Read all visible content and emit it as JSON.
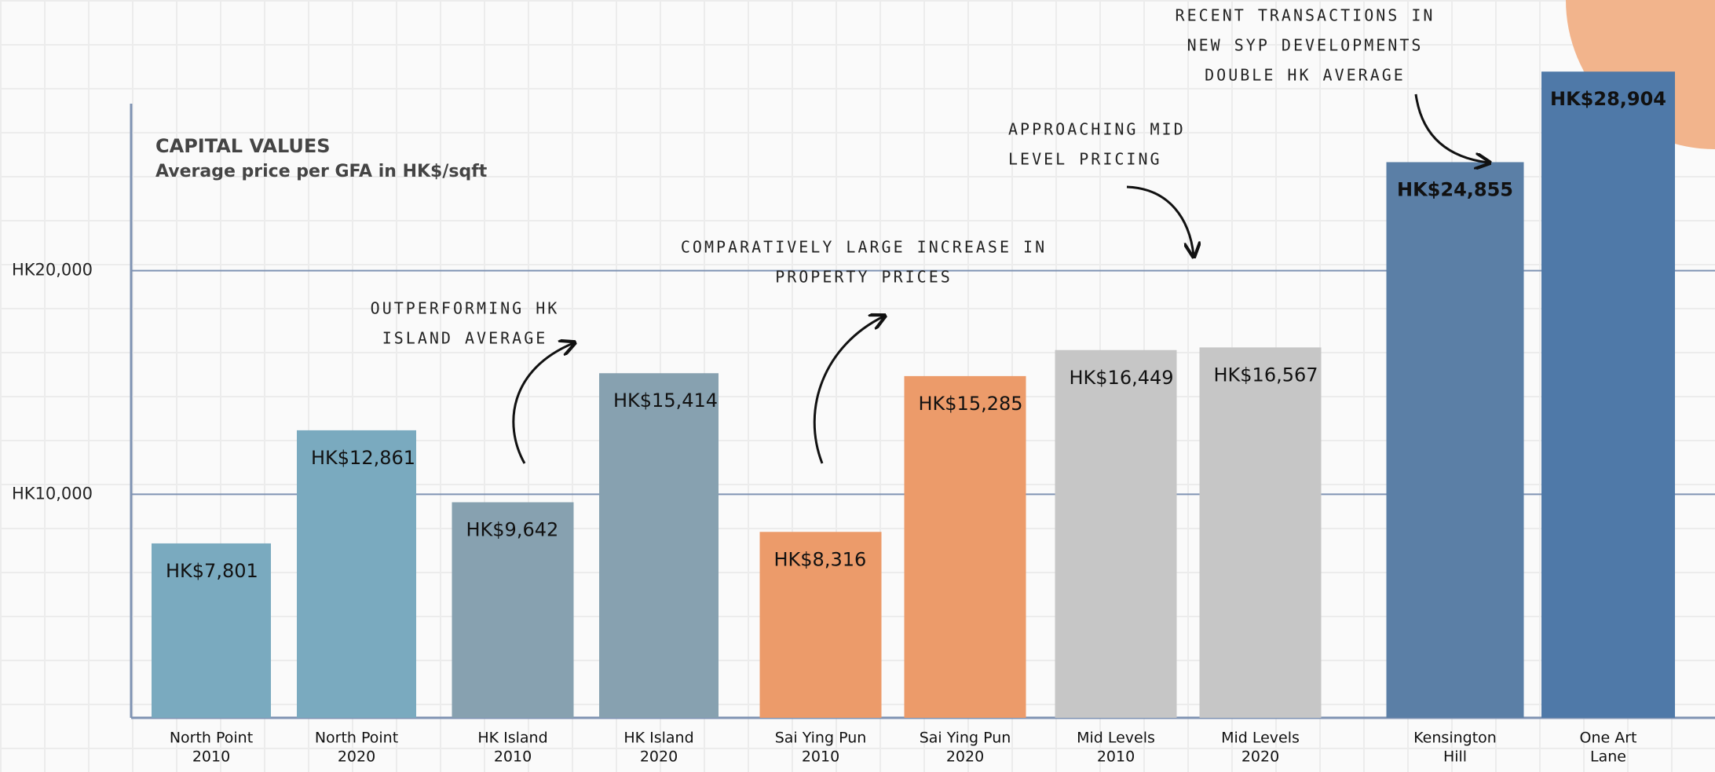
{
  "chart_data": {
    "type": "bar",
    "title": "CAPITAL VALUES",
    "subtitle": "Average price per GFA in HK$/sqft",
    "categories": [
      [
        "North Point",
        "2010"
      ],
      [
        "North Point",
        "2020"
      ],
      [
        "HK Island",
        "2010"
      ],
      [
        "HK Island",
        "2020"
      ],
      [
        "Sai Ying Pun",
        "2010"
      ],
      [
        "Sai Ying Pun",
        "2020"
      ],
      [
        "Mid Levels",
        "2010"
      ],
      [
        "Mid Levels",
        "2020"
      ],
      [
        "Kensington",
        "Hill"
      ],
      [
        "One Art",
        "Lane"
      ]
    ],
    "values": [
      7801,
      12861,
      9642,
      15414,
      8316,
      15285,
      16449,
      16567,
      24855,
      28904
    ],
    "value_labels": [
      "HK$7,801",
      "HK$12,861",
      "HK$9,642",
      "HK$15,414",
      "HK$8,316",
      "HK$15,285",
      "HK$16,449",
      "HK$16,567",
      "HK$24,855",
      "HK$28,904"
    ],
    "colors": [
      "#7aaabf",
      "#7aaabf",
      "#87a1b0",
      "#87a1b0",
      "#ec9b6a",
      "#ec9b6a",
      "#c6c6c6",
      "#c6c6c6",
      "#5b7fa6",
      "#4f79a8"
    ],
    "ylim": [
      0,
      30000
    ],
    "yticks": [
      {
        "value": 10000,
        "label": "HK10,000"
      },
      {
        "value": 20000,
        "label": "HK20,000"
      }
    ],
    "grid": true,
    "annotations": [
      [
        "OUTPERFORMING HK",
        "ISLAND AVERAGE"
      ],
      [
        "COMPARATIVELY LARGE INCREASE IN",
        "PROPERTY PRICES"
      ],
      [
        "APPROACHING MID",
        "LEVEL PRICING"
      ],
      [
        "RECENT TRANSACTIONS IN",
        "NEW SYP DEVELOPMENTS",
        "DOUBLE HK AVERAGE"
      ]
    ]
  }
}
